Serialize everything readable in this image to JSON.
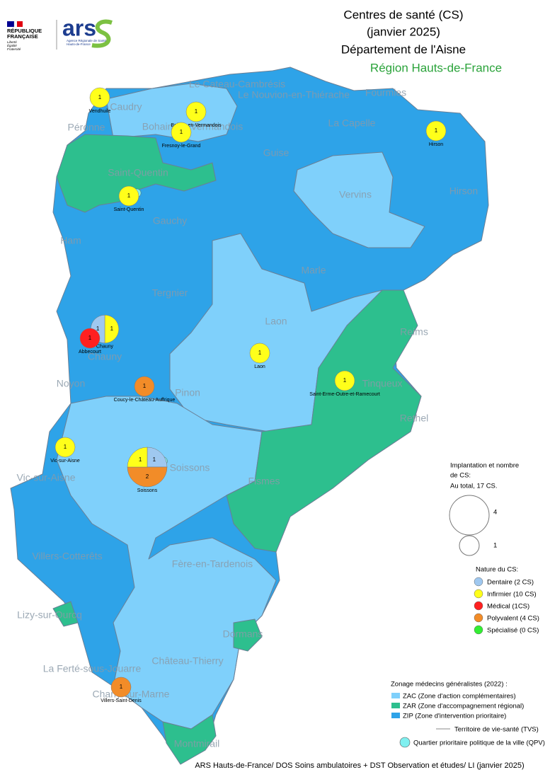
{
  "header": {
    "title_lines": [
      "Centres de santé (CS)",
      "(janvier 2025)",
      "Département de l'Aisne"
    ],
    "region": "Région Hauts-de-France"
  },
  "logos": {
    "republique": [
      "RÉPUBLIQUE",
      "FRANÇAISE"
    ],
    "motto": [
      "Liberté",
      "Égalité",
      "Fraternité"
    ],
    "ars": "ars",
    "ars_lines": [
      "Agence Régionale de Santé",
      "Hauts-de-France"
    ]
  },
  "places": [
    "Le Cateau-Cambrésis",
    "Le Nouvion-en-Thiérache",
    "Fourmies",
    "Caudry",
    "Bohain-en-Vermandois",
    "Péronne",
    "La Capelle",
    "Guise",
    "Saint-Quentin",
    "Vervins",
    "Hirson",
    "Gauchy",
    "Ham",
    "Marle",
    "Tergnier",
    "Laon",
    "Reims",
    "Chauny",
    "Noyon",
    "Tinqueux",
    "Rethel",
    "Pinon",
    "Soissons",
    "Vic-sur-Aisne",
    "Fismes",
    "Villers-Cotterêts",
    "Fère-en-Tardenois",
    "Lizy-sur-Ourcq",
    "Dormans",
    "Château-Thierry",
    "La Ferté-sous-Jouarre",
    "Charly-sur-Marne",
    "Montmirail"
  ],
  "markers": [
    {
      "name": "Vendhuile",
      "slices": [
        {
          "value": 1,
          "color": "#ffff1a"
        }
      ]
    },
    {
      "name": "Bohain-en-Vermandois",
      "slices": [
        {
          "value": 1,
          "color": "#ffff1a"
        }
      ]
    },
    {
      "name": "Fresnoy-le-Grand",
      "slices": [
        {
          "value": 1,
          "color": "#ffff1a"
        }
      ]
    },
    {
      "name": "Hirson",
      "slices": [
        {
          "value": 1,
          "color": "#ffff1a"
        }
      ]
    },
    {
      "name": "Saint-Quentin",
      "slices": [
        {
          "value": 1,
          "color": "#ffff1a"
        }
      ],
      "qpv": true
    },
    {
      "name": "Chauny",
      "slices": [
        {
          "value": 1,
          "color": "#ffff1a"
        },
        {
          "value": 1,
          "color": "#9fc8f0"
        }
      ]
    },
    {
      "name": "Abbecourt",
      "slices": [
        {
          "value": 1,
          "color": "#ff2020"
        }
      ]
    },
    {
      "name": "Laon",
      "slices": [
        {
          "value": 1,
          "color": "#ffff1a"
        }
      ]
    },
    {
      "name": "Saint-Erme-Outre-et-Ramecourt",
      "slices": [
        {
          "value": 1,
          "color": "#ffff1a"
        }
      ]
    },
    {
      "name": "Coucy-le-Château-Auffrique",
      "slices": [
        {
          "value": 1,
          "color": "#f28c28"
        }
      ]
    },
    {
      "name": "Vic-sur-Aisne",
      "slices": [
        {
          "value": 1,
          "color": "#ffff1a"
        }
      ]
    },
    {
      "name": "Soissons",
      "slices": [
        {
          "value": 1,
          "color": "#9fc8f0"
        },
        {
          "value": 2,
          "color": "#f28c28"
        },
        {
          "value": 1,
          "color": "#ffff1a"
        }
      ],
      "qpv": true
    },
    {
      "name": "Villers-Saint-Denis",
      "slices": [
        {
          "value": 1,
          "color": "#f28c28"
        }
      ]
    }
  ],
  "legend": {
    "size_title": [
      "Implantation et nombre",
      "de CS:",
      "Au total, 17 CS."
    ],
    "size_items": [
      4,
      1
    ],
    "nature_title": "Nature du CS:",
    "nature_items": [
      {
        "label": "Dentaire (2 CS)",
        "color": "#9fc8f0"
      },
      {
        "label": "Infirmier (10 CS)",
        "color": "#ffff1a"
      },
      {
        "label": "Médical (1CS)",
        "color": "#ff2020"
      },
      {
        "label": "Polyvalent (4 CS)",
        "color": "#f28c28"
      },
      {
        "label": "Spécialisé (0 CS)",
        "color": "#33ee33"
      }
    ],
    "zonage_title": "Zonage médecins généralistes (2022) :",
    "zonage_items": [
      {
        "label": "ZAC (Zone d'action complémentaires)",
        "color": "#7fd0fb"
      },
      {
        "label": "ZAR (Zone d'accompagnement régional)",
        "color": "#2dbf8e"
      },
      {
        "label": "ZIP (Zone d'intervention prioritaire)",
        "color": "#2ea3e8"
      }
    ],
    "tvs": "Territoire de vie-santé (TVS)",
    "qpv": "Quartier prioritaire politique de la ville (QPV)",
    "qpv_color": "#7ff0f0"
  },
  "footer": "ARS Hauts-de-France/ DOS Soins ambulatoires + DST Observation et études/ LI (janvier 2025)"
}
